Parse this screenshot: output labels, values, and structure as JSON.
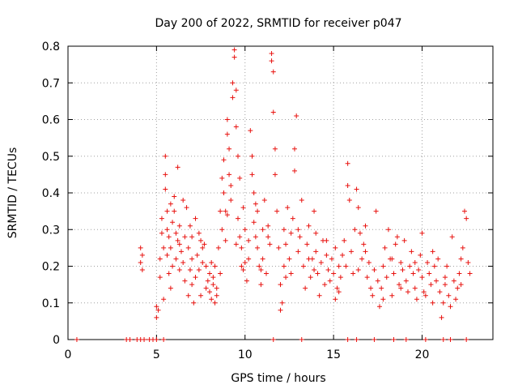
{
  "chart_data": {
    "type": "scatter",
    "title": "Day 200 of 2022, SRMTID for receiver p047",
    "xlabel": "GPS time / hours",
    "ylabel": "SRMTID / TECUs",
    "xlim": [
      0,
      24
    ],
    "ylim": [
      0,
      0.8
    ],
    "x_ticks": [
      0,
      5,
      10,
      15,
      20
    ],
    "y_ticks": [
      0,
      0.1,
      0.2,
      0.3,
      0.4,
      0.5,
      0.6,
      0.7,
      0.8
    ],
    "x_tick_labels": [
      "0",
      "5",
      "10",
      "15",
      "20"
    ],
    "y_tick_labels": [
      "0",
      "0.1",
      "0.2",
      "0.3",
      "0.4",
      "0.5",
      "0.6",
      "0.7",
      "0.8"
    ],
    "grid": true,
    "marker": "plus",
    "color": "#e8120f",
    "series": [
      {
        "name": "SRMTID",
        "points": [
          [
            0.5,
            0
          ],
          [
            3.3,
            0
          ],
          [
            3.5,
            0
          ],
          [
            3.9,
            0
          ],
          [
            4.1,
            0
          ],
          [
            4.3,
            0
          ],
          [
            4.6,
            0
          ],
          [
            4.8,
            0
          ],
          [
            5.0,
            0
          ],
          [
            5.4,
            0
          ],
          [
            11.6,
            0
          ],
          [
            13.2,
            0
          ],
          [
            15.8,
            0
          ],
          [
            16.3,
            0
          ],
          [
            17.3,
            0
          ],
          [
            18.4,
            0
          ],
          [
            19.1,
            0
          ],
          [
            20.2,
            0
          ],
          [
            21.2,
            0
          ],
          [
            21.6,
            0
          ],
          [
            22.5,
            0
          ],
          [
            4.1,
            0.25
          ],
          [
            4.1,
            0.21
          ],
          [
            4.2,
            0.19
          ],
          [
            4.2,
            0.23
          ],
          [
            5.0,
            0.09
          ],
          [
            5.0,
            0.06
          ],
          [
            5.1,
            0.08
          ],
          [
            5.2,
            0.22
          ],
          [
            5.2,
            0.17
          ],
          [
            5.3,
            0.29
          ],
          [
            5.3,
            0.33
          ],
          [
            5.4,
            0.25
          ],
          [
            5.4,
            0.11
          ],
          [
            5.5,
            0.5
          ],
          [
            5.5,
            0.45
          ],
          [
            5.5,
            0.41
          ],
          [
            5.6,
            0.35
          ],
          [
            5.6,
            0.3
          ],
          [
            5.6,
            0.23
          ],
          [
            5.7,
            0.18
          ],
          [
            5.7,
            0.28
          ],
          [
            5.8,
            0.37
          ],
          [
            5.8,
            0.25
          ],
          [
            5.9,
            0.2
          ],
          [
            5.9,
            0.32
          ],
          [
            6.0,
            0.39
          ],
          [
            6.0,
            0.35
          ],
          [
            6.1,
            0.29
          ],
          [
            6.1,
            0.22
          ],
          [
            6.2,
            0.47
          ],
          [
            6.2,
            0.27
          ],
          [
            6.3,
            0.19
          ],
          [
            6.3,
            0.31
          ],
          [
            6.4,
            0.24
          ],
          [
            6.5,
            0.21
          ],
          [
            6.5,
            0.38
          ],
          [
            6.6,
            0.28
          ],
          [
            6.6,
            0.16
          ],
          [
            6.7,
            0.36
          ],
          [
            6.8,
            0.25
          ],
          [
            6.8,
            0.12
          ],
          [
            6.9,
            0.31
          ],
          [
            7.0,
            0.22
          ],
          [
            7.0,
            0.28
          ],
          [
            7.1,
            0.1
          ],
          [
            7.2,
            0.17
          ],
          [
            7.2,
            0.33
          ],
          [
            7.3,
            0.23
          ],
          [
            7.4,
            0.19
          ],
          [
            7.4,
            0.29
          ],
          [
            7.5,
            0.12
          ],
          [
            7.6,
            0.25
          ],
          [
            7.6,
            0.21
          ],
          [
            7.7,
            0.26
          ],
          [
            7.8,
            0.2
          ],
          [
            7.8,
            0.14
          ],
          [
            7.9,
            0.16
          ],
          [
            8.0,
            0.18
          ],
          [
            8.0,
            0.13
          ],
          [
            8.1,
            0.11
          ],
          [
            8.2,
            0.17
          ],
          [
            8.2,
            0.15
          ],
          [
            8.3,
            0.2
          ],
          [
            8.4,
            0.12
          ],
          [
            8.4,
            0.14
          ],
          [
            8.5,
            0.25
          ],
          [
            8.6,
            0.18
          ],
          [
            8.6,
            0.35
          ],
          [
            8.7,
            0.44
          ],
          [
            8.7,
            0.3
          ],
          [
            8.8,
            0.49
          ],
          [
            8.8,
            0.4
          ],
          [
            8.9,
            0.35
          ],
          [
            8.9,
            0.27
          ],
          [
            9.0,
            0.56
          ],
          [
            9.0,
            0.6
          ],
          [
            9.1,
            0.52
          ],
          [
            9.1,
            0.45
          ],
          [
            9.2,
            0.42
          ],
          [
            9.2,
            0.38
          ],
          [
            9.3,
            0.7
          ],
          [
            9.3,
            0.66
          ],
          [
            9.4,
            0.79
          ],
          [
            9.4,
            0.77
          ],
          [
            9.5,
            0.68
          ],
          [
            9.5,
            0.58
          ],
          [
            9.6,
            0.5
          ],
          [
            9.6,
            0.33
          ],
          [
            9.7,
            0.28
          ],
          [
            9.7,
            0.44
          ],
          [
            9.8,
            0.2
          ],
          [
            9.8,
            0.25
          ],
          [
            9.9,
            0.36
          ],
          [
            10.0,
            0.3
          ],
          [
            10.0,
            0.21
          ],
          [
            10.1,
            0.16
          ],
          [
            10.2,
            0.27
          ],
          [
            10.2,
            0.22
          ],
          [
            10.3,
            0.57
          ],
          [
            10.4,
            0.5
          ],
          [
            10.4,
            0.45
          ],
          [
            10.5,
            0.4
          ],
          [
            10.5,
            0.32
          ],
          [
            10.6,
            0.28
          ],
          [
            10.7,
            0.35
          ],
          [
            10.7,
            0.25
          ],
          [
            10.8,
            0.2
          ],
          [
            10.9,
            0.15
          ],
          [
            11.0,
            0.3
          ],
          [
            11.0,
            0.22
          ],
          [
            11.1,
            0.38
          ],
          [
            11.2,
            0.18
          ],
          [
            11.3,
            0.28
          ],
          [
            11.4,
            0.26
          ],
          [
            11.5,
            0.78
          ],
          [
            11.5,
            0.76
          ],
          [
            11.6,
            0.73
          ],
          [
            11.6,
            0.62
          ],
          [
            11.7,
            0.52
          ],
          [
            11.7,
            0.45
          ],
          [
            11.8,
            0.35
          ],
          [
            11.9,
            0.25
          ],
          [
            12.0,
            0.15
          ],
          [
            12.0,
            0.08
          ],
          [
            12.1,
            0.1
          ],
          [
            12.2,
            0.2
          ],
          [
            12.2,
            0.3
          ],
          [
            12.3,
            0.26
          ],
          [
            12.4,
            0.36
          ],
          [
            12.5,
            0.22
          ],
          [
            12.6,
            0.18
          ],
          [
            12.7,
            0.33
          ],
          [
            12.8,
            0.46
          ],
          [
            12.8,
            0.52
          ],
          [
            12.9,
            0.61
          ],
          [
            13.0,
            0.3
          ],
          [
            13.0,
            0.24
          ],
          [
            13.1,
            0.28
          ],
          [
            13.2,
            0.38
          ],
          [
            13.3,
            0.2
          ],
          [
            13.4,
            0.14
          ],
          [
            13.5,
            0.26
          ],
          [
            13.6,
            0.31
          ],
          [
            13.7,
            0.17
          ],
          [
            13.8,
            0.22
          ],
          [
            13.9,
            0.35
          ],
          [
            14.0,
            0.24
          ],
          [
            14.0,
            0.29
          ],
          [
            14.1,
            0.18
          ],
          [
            14.2,
            0.12
          ],
          [
            14.3,
            0.21
          ],
          [
            14.4,
            0.27
          ],
          [
            14.5,
            0.15
          ],
          [
            14.6,
            0.23
          ],
          [
            14.7,
            0.19
          ],
          [
            14.8,
            0.16
          ],
          [
            14.9,
            0.22
          ],
          [
            15.0,
            0.18
          ],
          [
            15.1,
            0.25
          ],
          [
            15.2,
            0.14
          ],
          [
            15.3,
            0.2
          ],
          [
            15.4,
            0.17
          ],
          [
            15.5,
            0.23
          ],
          [
            15.6,
            0.27
          ],
          [
            15.7,
            0.2
          ],
          [
            15.8,
            0.42
          ],
          [
            15.8,
            0.48
          ],
          [
            15.9,
            0.38
          ],
          [
            16.0,
            0.24
          ],
          [
            16.1,
            0.18
          ],
          [
            16.2,
            0.3
          ],
          [
            16.3,
            0.41
          ],
          [
            16.4,
            0.36
          ],
          [
            16.5,
            0.29
          ],
          [
            16.6,
            0.22
          ],
          [
            16.7,
            0.26
          ],
          [
            16.8,
            0.31
          ],
          [
            16.9,
            0.17
          ],
          [
            17.0,
            0.21
          ],
          [
            17.1,
            0.14
          ],
          [
            17.2,
            0.12
          ],
          [
            17.3,
            0.19
          ],
          [
            17.4,
            0.35
          ],
          [
            17.5,
            0.16
          ],
          [
            17.6,
            0.09
          ],
          [
            17.7,
            0.14
          ],
          [
            17.8,
            0.2
          ],
          [
            17.9,
            0.25
          ],
          [
            18.0,
            0.17
          ],
          [
            18.1,
            0.3
          ],
          [
            18.2,
            0.22
          ],
          [
            18.3,
            0.12
          ],
          [
            18.4,
            0.18
          ],
          [
            18.5,
            0.26
          ],
          [
            18.6,
            0.28
          ],
          [
            18.7,
            0.15
          ],
          [
            18.8,
            0.21
          ],
          [
            18.9,
            0.19
          ],
          [
            19.0,
            0.27
          ],
          [
            19.1,
            0.16
          ],
          [
            19.2,
            0.13
          ],
          [
            19.3,
            0.2
          ],
          [
            19.4,
            0.24
          ],
          [
            19.5,
            0.18
          ],
          [
            19.6,
            0.14
          ],
          [
            19.7,
            0.11
          ],
          [
            19.8,
            0.19
          ],
          [
            19.9,
            0.23
          ],
          [
            20.0,
            0.17
          ],
          [
            20.1,
            0.13
          ],
          [
            20.2,
            0.12
          ],
          [
            20.3,
            0.21
          ],
          [
            20.4,
            0.18
          ],
          [
            20.5,
            0.15
          ],
          [
            20.6,
            0.24
          ],
          [
            20.7,
            0.2
          ],
          [
            20.8,
            0.16
          ],
          [
            20.9,
            0.22
          ],
          [
            21.0,
            0.13
          ],
          [
            21.1,
            0.06
          ],
          [
            21.2,
            0.1
          ],
          [
            21.3,
            0.15
          ],
          [
            21.4,
            0.2
          ],
          [
            21.5,
            0.12
          ],
          [
            21.6,
            0.09
          ],
          [
            21.7,
            0.28
          ],
          [
            21.8,
            0.16
          ],
          [
            21.9,
            0.11
          ],
          [
            22.0,
            0.14
          ],
          [
            22.1,
            0.18
          ],
          [
            22.2,
            0.22
          ],
          [
            22.3,
            0.25
          ],
          [
            22.4,
            0.35
          ],
          [
            22.5,
            0.33
          ],
          [
            22.6,
            0.21
          ],
          [
            22.7,
            0.18
          ],
          [
            6.3,
            0.26
          ],
          [
            6.9,
            0.19
          ],
          [
            7.5,
            0.27
          ],
          [
            8.1,
            0.21
          ],
          [
            9.0,
            0.34
          ],
          [
            9.9,
            0.19
          ],
          [
            10.6,
            0.37
          ],
          [
            11.3,
            0.31
          ],
          [
            12.3,
            0.17
          ],
          [
            13.6,
            0.22
          ],
          [
            14.6,
            0.27
          ],
          [
            15.3,
            0.13
          ],
          [
            16.4,
            0.19
          ],
          [
            17.8,
            0.11
          ],
          [
            18.8,
            0.14
          ],
          [
            19.6,
            0.21
          ],
          [
            20.6,
            0.1
          ],
          [
            21.3,
            0.17
          ],
          [
            22.2,
            0.15
          ],
          [
            5.8,
            0.14
          ],
          [
            7.0,
            0.15
          ],
          [
            8.3,
            0.1
          ],
          [
            9.5,
            0.26
          ],
          [
            10.9,
            0.19
          ],
          [
            12.6,
            0.29
          ],
          [
            13.9,
            0.19
          ],
          [
            15.1,
            0.11
          ],
          [
            16.8,
            0.24
          ],
          [
            18.3,
            0.22
          ],
          [
            20.0,
            0.29
          ]
        ]
      }
    ]
  }
}
